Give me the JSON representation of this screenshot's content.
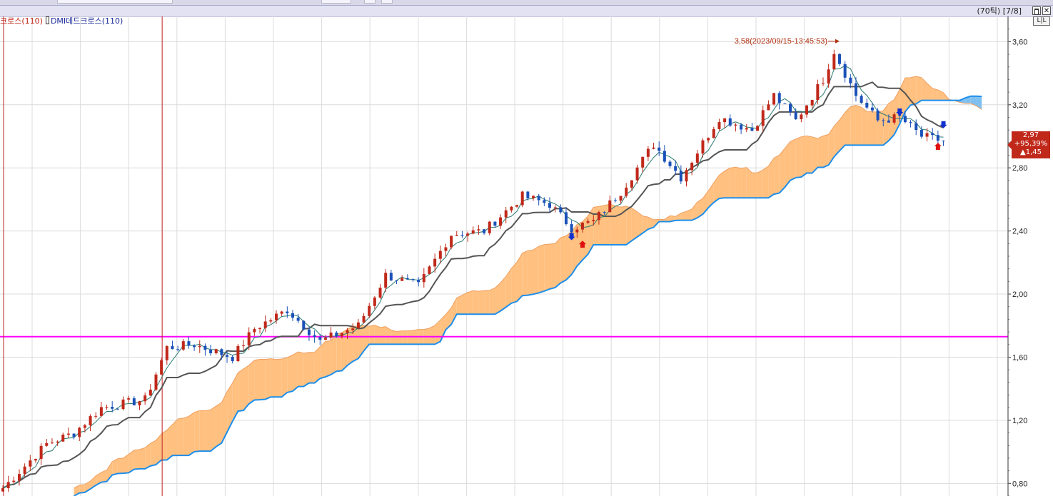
{
  "window": {
    "tick_info": "(70틱) [7/8]",
    "restore_icon": "restore-icon",
    "close_icon": "close-icon",
    "close_glyph": "✕",
    "lr_label": "L|L"
  },
  "legend": {
    "golden_cross": "크로스(110)",
    "dead_cross": "DMI데드크로스(110)",
    "golden_color": "#c02010",
    "dead_color": "#1a2a9a"
  },
  "last_price": {
    "price": "2,97",
    "change_pct": "+95,39%",
    "change": "▲1,45"
  },
  "chart_data": {
    "type": "candlestick",
    "title": "",
    "y_axis": {
      "min": 0.72,
      "max": 3.76,
      "ticks": [
        0.8,
        1.2,
        1.6,
        2.0,
        2.4,
        2.8,
        3.2,
        3.6
      ],
      "tick_labels": [
        "0,80",
        "1,20",
        "1,60",
        "2,00",
        "2,40",
        "2,80",
        "3,20",
        "3,60"
      ],
      "position": "right"
    },
    "grid": true,
    "x_points": 180,
    "annotation_high": {
      "text": "3,58(2023/09/15-13:45:53)",
      "value": 3.58
    },
    "horizontal_line": {
      "value": 1.73,
      "color": "#ff00ff"
    },
    "vertical_lines_index": [
      0,
      29
    ],
    "colors": {
      "up": "#c0281a",
      "down": "#1a50b8",
      "cloud_bull": "#ffc080",
      "cloud_bear": "#80c0f0",
      "span_a": "#f0a060",
      "span_b": "#1e8ee8",
      "base": "#555555",
      "conversion": "#2a7a70"
    },
    "anchors": [
      [
        0,
        0.77
      ],
      [
        8,
        1.05
      ],
      [
        13,
        1.12
      ],
      [
        18,
        1.28
      ],
      [
        26,
        1.33
      ],
      [
        30,
        1.66
      ],
      [
        35,
        1.68
      ],
      [
        42,
        1.6
      ],
      [
        46,
        1.78
      ],
      [
        52,
        1.9
      ],
      [
        58,
        1.7
      ],
      [
        65,
        1.8
      ],
      [
        70,
        2.12
      ],
      [
        76,
        2.05
      ],
      [
        82,
        2.38
      ],
      [
        88,
        2.4
      ],
      [
        95,
        2.62
      ],
      [
        100,
        2.57
      ],
      [
        104,
        2.42
      ],
      [
        108,
        2.46
      ],
      [
        113,
        2.65
      ],
      [
        119,
        2.95
      ],
      [
        124,
        2.74
      ],
      [
        131,
        3.12
      ],
      [
        137,
        3.04
      ],
      [
        141,
        3.26
      ],
      [
        145,
        3.1
      ],
      [
        150,
        3.36
      ],
      [
        152,
        3.54
      ],
      [
        156,
        3.26
      ],
      [
        160,
        3.1
      ],
      [
        164,
        3.12
      ],
      [
        168,
        3.0
      ],
      [
        172,
        2.97
      ]
    ],
    "signals": [
      {
        "type": "buy",
        "index": 106,
        "value": 2.33
      },
      {
        "type": "sell",
        "index": 104,
        "value": 2.35
      },
      {
        "type": "sell",
        "index": 164,
        "value": 3.14
      },
      {
        "type": "sell",
        "index": 172,
        "value": 3.06
      },
      {
        "type": "buy",
        "index": 171,
        "value": 2.95
      }
    ]
  }
}
